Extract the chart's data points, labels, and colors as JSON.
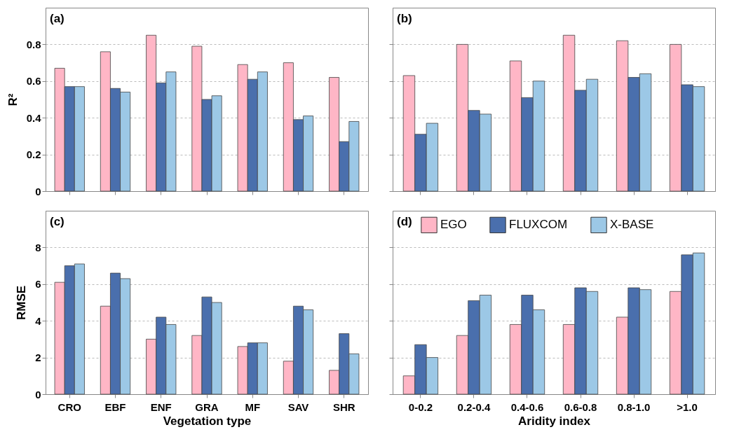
{
  "chart_data": [
    {
      "type": "bar",
      "categories": [
        null,
        null,
        null,
        null,
        null,
        null,
        null
      ],
      "ylabel": "R²",
      "ylim": [
        0,
        1
      ],
      "yticks": [
        0,
        0.2,
        0.4,
        0.6,
        0.8
      ],
      "grid": "y",
      "tick_labels": "y",
      "annotations": [
        "(a)"
      ],
      "series": [
        {
          "color": "#ffb6c6",
          "values": [
            0.67,
            0.76,
            0.85,
            0.79,
            0.69,
            0.7,
            0.62
          ]
        },
        {
          "color": "#4a6fad",
          "values": [
            0.57,
            0.56,
            0.59,
            0.5,
            0.61,
            0.39,
            0.27
          ]
        },
        {
          "color": "#9cc8e6",
          "values": [
            0.57,
            0.54,
            0.65,
            0.52,
            0.65,
            0.41,
            0.38
          ]
        }
      ]
    },
    {
      "type": "bar",
      "categories": [
        null,
        null,
        null,
        null,
        null,
        null
      ],
      "ylim": [
        0,
        1
      ],
      "yticks": [
        0,
        0.2,
        0.4,
        0.6,
        0.8
      ],
      "grid": "y",
      "tick_labels": false,
      "annotations": [
        "(b)"
      ],
      "series": [
        {
          "color": "#ffb6c6",
          "values": [
            0.63,
            0.8,
            0.71,
            0.85,
            0.82,
            0.8
          ]
        },
        {
          "color": "#4a6fad",
          "values": [
            0.31,
            0.44,
            0.51,
            0.55,
            0.62,
            0.58
          ]
        },
        {
          "color": "#9cc8e6",
          "values": [
            0.37,
            0.42,
            0.6,
            0.61,
            0.64,
            0.57
          ]
        }
      ]
    },
    {
      "type": "bar",
      "categories": [
        "CRO",
        "EBF",
        "ENF",
        "GRA",
        "MF",
        "SAV",
        "SHR"
      ],
      "xlabel": "Vegetation type",
      "ylabel": "RMSE",
      "ylim": [
        0,
        10
      ],
      "yticks": [
        0,
        2,
        4,
        6,
        8
      ],
      "grid": "y",
      "annotations": [
        "(c)"
      ],
      "series": [
        {
          "color": "#ffb6c6",
          "values": [
            6.1,
            4.8,
            3.0,
            3.2,
            2.6,
            1.8,
            1.3
          ]
        },
        {
          "color": "#4a6fad",
          "values": [
            7.0,
            6.6,
            4.2,
            5.3,
            2.8,
            4.8,
            3.3
          ]
        },
        {
          "color": "#9cc8e6",
          "values": [
            7.1,
            6.3,
            3.8,
            5.0,
            2.8,
            4.6,
            2.2
          ]
        }
      ]
    },
    {
      "type": "bar",
      "categories": [
        "0-0.2",
        "0.2-0.4",
        "0.4-0.6",
        "0.6-0.8",
        "0.8-1.0",
        ">1.0"
      ],
      "xlabel": "Aridity index",
      "ylim": [
        0,
        10
      ],
      "yticks": [
        0,
        2,
        4,
        6,
        8
      ],
      "grid": "y",
      "tick_labels": "x",
      "legend": "top",
      "annotations": [
        "(d)"
      ],
      "series": [
        {
          "name": "EGO",
          "color": "#ffb6c6",
          "values": [
            1.0,
            3.2,
            3.8,
            3.8,
            4.2,
            5.6
          ]
        },
        {
          "name": "FLUXCOM",
          "color": "#4a6fad",
          "values": [
            2.7,
            5.1,
            5.4,
            5.8,
            5.8,
            7.6
          ]
        },
        {
          "name": "X-BASE",
          "color": "#9cc8e6",
          "values": [
            2.0,
            5.4,
            4.6,
            5.6,
            5.7,
            7.7
          ]
        }
      ]
    }
  ]
}
